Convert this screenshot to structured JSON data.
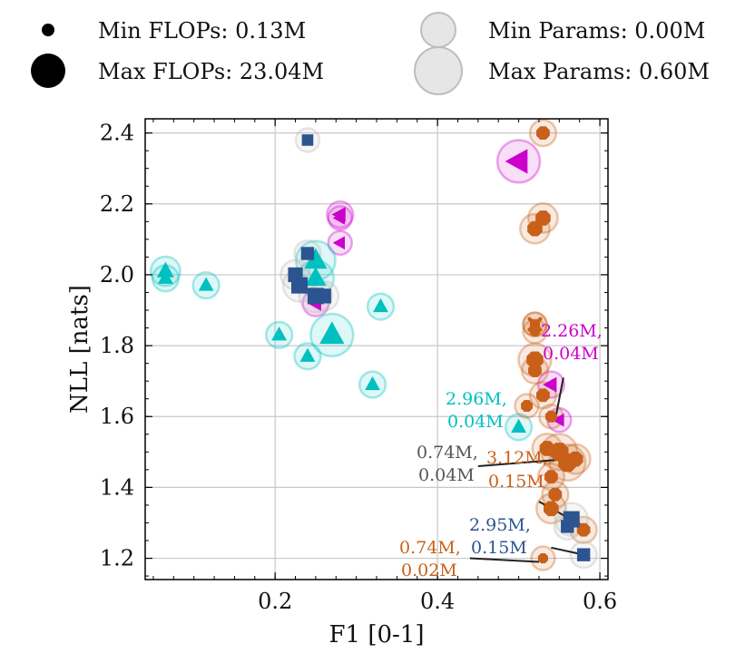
{
  "colors": {
    "magenta": "#cc00cc",
    "cyan": "#00c0c0",
    "orange": "#c8601a",
    "navy": "#2c5490",
    "gray": "#555555",
    "grid": "#c8c8c8",
    "halo_gray": "#b8b8b8"
  },
  "legend": {
    "min_flops": "Min FLOPs: 0.13M",
    "max_flops": "Max FLOPs: 23.04M",
    "min_params": "Min Params: 0.00M",
    "max_params": "Max Params: 0.60M"
  },
  "chart_data": {
    "type": "scatter",
    "xlabel": "F1 [0-1]",
    "ylabel": "NLL [nats]",
    "xlim": [
      0.04,
      0.61
    ],
    "ylim": [
      1.14,
      2.44
    ],
    "xticks": [
      {
        "value": 0.2,
        "label": "0.2"
      },
      {
        "value": 0.4,
        "label": "0.4"
      },
      {
        "value": 0.6,
        "label": "0.6"
      }
    ],
    "yticks": [
      {
        "value": 1.2,
        "label": "1.2"
      },
      {
        "value": 1.4,
        "label": "1.4"
      },
      {
        "value": 1.6,
        "label": "1.6"
      },
      {
        "value": 1.8,
        "label": "1.8"
      },
      {
        "value": 2.0,
        "label": "2.0"
      },
      {
        "value": 2.2,
        "label": "2.2"
      },
      {
        "value": 2.4,
        "label": "2.4"
      }
    ],
    "grid": true,
    "size_encoding": "marker size = FLOPs, halo size = Params",
    "series": [
      {
        "name": "magenta",
        "marker": "triangle-left",
        "points": [
          {
            "x": 0.5,
            "y": 2.32,
            "s": 13
          },
          {
            "x": 0.28,
            "y": 2.17,
            "s": 8
          },
          {
            "x": 0.28,
            "y": 2.16,
            "s": 7
          },
          {
            "x": 0.28,
            "y": 2.09,
            "s": 7
          },
          {
            "x": 0.25,
            "y": 1.92,
            "s": 8
          },
          {
            "x": 0.54,
            "y": 1.69,
            "s": 8
          },
          {
            "x": 0.55,
            "y": 1.59,
            "s": 7
          }
        ]
      },
      {
        "name": "cyan",
        "marker": "triangle-up",
        "points": [
          {
            "x": 0.065,
            "y": 2.01,
            "s": 9
          },
          {
            "x": 0.065,
            "y": 1.99,
            "s": 8
          },
          {
            "x": 0.115,
            "y": 1.97,
            "s": 8
          },
          {
            "x": 0.25,
            "y": 2.04,
            "s": 12
          },
          {
            "x": 0.25,
            "y": 1.99,
            "s": 11
          },
          {
            "x": 0.33,
            "y": 1.91,
            "s": 8
          },
          {
            "x": 0.205,
            "y": 1.83,
            "s": 8
          },
          {
            "x": 0.27,
            "y": 1.83,
            "s": 13
          },
          {
            "x": 0.24,
            "y": 1.77,
            "s": 8
          },
          {
            "x": 0.32,
            "y": 1.69,
            "s": 8
          },
          {
            "x": 0.5,
            "y": 1.57,
            "s": 8
          }
        ]
      },
      {
        "name": "orange",
        "marker": "octagon",
        "points": [
          {
            "x": 0.53,
            "y": 2.4,
            "s": 8
          },
          {
            "x": 0.53,
            "y": 2.16,
            "s": 9
          },
          {
            "x": 0.52,
            "y": 2.13,
            "s": 9
          },
          {
            "x": 0.52,
            "y": 1.86,
            "s": 6
          },
          {
            "x": 0.52,
            "y": 1.84,
            "s": 6
          },
          {
            "x": 0.52,
            "y": 1.76,
            "s": 10
          },
          {
            "x": 0.52,
            "y": 1.73,
            "s": 8
          },
          {
            "x": 0.53,
            "y": 1.66,
            "s": 8
          },
          {
            "x": 0.51,
            "y": 1.63,
            "s": 7
          },
          {
            "x": 0.54,
            "y": 1.6,
            "s": 7
          },
          {
            "x": 0.535,
            "y": 1.51,
            "s": 9
          },
          {
            "x": 0.55,
            "y": 1.5,
            "s": 11
          },
          {
            "x": 0.56,
            "y": 1.47,
            "s": 11
          },
          {
            "x": 0.57,
            "y": 1.48,
            "s": 9
          },
          {
            "x": 0.54,
            "y": 1.43,
            "s": 8
          },
          {
            "x": 0.545,
            "y": 1.38,
            "s": 8
          },
          {
            "x": 0.54,
            "y": 1.34,
            "s": 9
          },
          {
            "x": 0.58,
            "y": 1.28,
            "s": 8
          },
          {
            "x": 0.53,
            "y": 1.2,
            "s": 6
          }
        ]
      },
      {
        "name": "navy",
        "marker": "square",
        "points": [
          {
            "x": 0.24,
            "y": 2.38,
            "s": 7
          },
          {
            "x": 0.24,
            "y": 2.06,
            "s": 8
          },
          {
            "x": 0.225,
            "y": 2.0,
            "s": 9
          },
          {
            "x": 0.23,
            "y": 1.97,
            "s": 10
          },
          {
            "x": 0.25,
            "y": 1.94,
            "s": 10
          },
          {
            "x": 0.26,
            "y": 1.94,
            "s": 9
          },
          {
            "x": 0.565,
            "y": 1.31,
            "s": 10
          },
          {
            "x": 0.56,
            "y": 1.29,
            "s": 8
          },
          {
            "x": 0.58,
            "y": 1.21,
            "s": 8
          }
        ]
      },
      {
        "name": "gray-x",
        "marker": "x",
        "points": [
          {
            "x": 0.52,
            "y": 1.86,
            "s": 6
          }
        ]
      }
    ],
    "annotations": [
      {
        "id": "magenta-ann",
        "line1": "2.26M,",
        "line2": "0.04M",
        "color": "magenta",
        "pointer": [
          {
            "x": 0.555,
            "y": 1.71
          },
          {
            "x": 0.545,
            "y": 1.59
          }
        ]
      },
      {
        "id": "cyan-ann",
        "line1": "2.96M,",
        "line2": "0.04M",
        "color": "cyan",
        "pointer": []
      },
      {
        "id": "gray-ann",
        "line1": "0.74M,",
        "line2": "0.04M",
        "color": "gray",
        "pointer": [
          {
            "x": 0.45,
            "y": 1.46
          },
          {
            "x": 0.56,
            "y": 1.48
          }
        ]
      },
      {
        "id": "orange-top-ann",
        "line1": "3.12M,",
        "line2": "0.15M",
        "color": "orange",
        "pointer": [
          {
            "x": 0.525,
            "y": 1.36
          },
          {
            "x": 0.58,
            "y": 1.29
          }
        ]
      },
      {
        "id": "navy-ann",
        "line1": "2.95M,",
        "line2": "0.15M",
        "color": "navy",
        "pointer": [
          {
            "x": 0.54,
            "y": 1.23
          },
          {
            "x": 0.58,
            "y": 1.21
          }
        ]
      },
      {
        "id": "orange-bot-ann",
        "line1": "0.74M,",
        "line2": "0.02M",
        "color": "orange",
        "pointer": [
          {
            "x": 0.44,
            "y": 1.2
          },
          {
            "x": 0.525,
            "y": 1.19
          }
        ]
      }
    ]
  }
}
